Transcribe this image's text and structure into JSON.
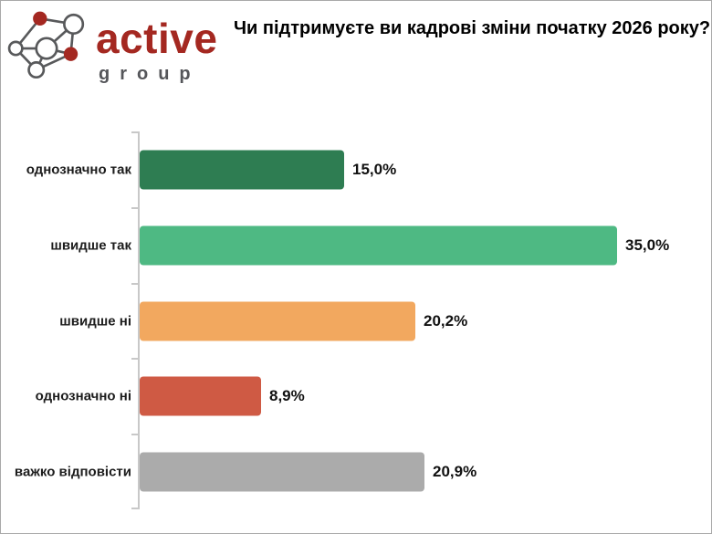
{
  "header": {
    "logo": {
      "brand": "active",
      "sub": "group",
      "brand_color": "#A42821",
      "sub_color": "#55565A"
    },
    "title": "Чи підтримуєте ви кадрові зміни початку 2026 року?"
  },
  "chart_data": {
    "type": "bar",
    "orientation": "horizontal",
    "title": "Чи підтримуєте ви кадрові зміни початку 2026 року?",
    "categories": [
      "однозначно так",
      "швидше так",
      "швидше ні",
      "однозначно ні",
      "важко відповісти"
    ],
    "values": [
      15.0,
      35.0,
      20.2,
      8.9,
      20.9
    ],
    "value_labels": [
      "15,0%",
      "35,0%",
      "20,2%",
      "8,9%",
      "20,9%"
    ],
    "colors": [
      "#2E7D52",
      "#4EB983",
      "#F2A85F",
      "#CF5A44",
      "#ABABAB"
    ],
    "xlabel": "",
    "ylabel": "",
    "xlim": [
      0,
      41.5
    ],
    "grid": false,
    "legend": false
  }
}
